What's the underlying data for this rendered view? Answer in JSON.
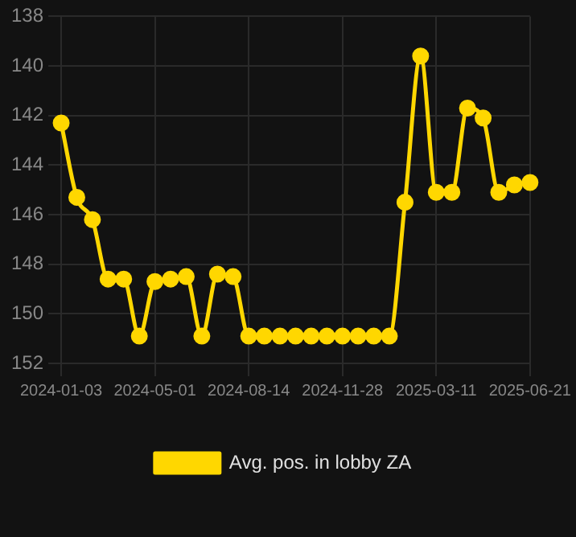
{
  "chart_data": {
    "type": "line",
    "categories": [
      "2024-01-03",
      null,
      null,
      null,
      null,
      null,
      "2024-05-01",
      null,
      null,
      null,
      null,
      null,
      "2024-08-14",
      null,
      null,
      null,
      null,
      null,
      "2024-11-28",
      null,
      null,
      null,
      null,
      null,
      "2025-03-11",
      null,
      null,
      null,
      null,
      null,
      "2025-06-21"
    ],
    "series": [
      {
        "name": "Avg. pos. in lobby ZA",
        "color": "#ffd700",
        "values": [
          142.3,
          145.3,
          146.2,
          148.6,
          148.6,
          150.9,
          148.7,
          148.6,
          148.5,
          150.9,
          148.4,
          148.5,
          150.9,
          150.9,
          150.9,
          150.9,
          150.9,
          150.9,
          150.9,
          150.9,
          150.9,
          150.9,
          145.5,
          139.6,
          145.1,
          145.1,
          141.7,
          142.1,
          145.1,
          144.8,
          144.7
        ]
      }
    ],
    "ylim": [
      152,
      138
    ],
    "yticks": [
      138,
      140,
      142,
      144,
      146,
      148,
      150,
      152
    ],
    "grid": true,
    "legend": "bottom",
    "marker": "circle",
    "line_style": "solid"
  }
}
